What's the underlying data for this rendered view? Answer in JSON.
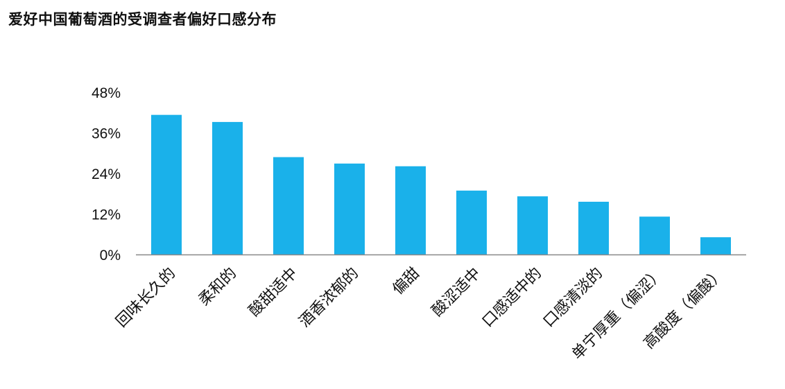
{
  "chart_data": {
    "type": "bar",
    "title": "爱好中国葡萄酒的受调查者偏好口感分布",
    "xlabel": "",
    "ylabel": "",
    "categories": [
      "回味长久的",
      "柔和的",
      "酸甜适中",
      "酒香浓郁的",
      "偏甜",
      "酸涩适中",
      "口感适中的",
      "口感清淡的",
      "单宁厚重（偏涩）",
      "高酸度（偏酸）"
    ],
    "values": [
      41.3,
      39.2,
      28.8,
      26.9,
      26.1,
      18.9,
      17.2,
      15.6,
      11.2,
      5.1
    ],
    "ylim": [
      0,
      48
    ],
    "yticks": [
      0,
      12,
      24,
      36,
      48
    ],
    "ytick_labels": [
      "0%",
      "12%",
      "24%",
      "36%",
      "48%"
    ],
    "grid": false,
    "legend": "none",
    "colors": {
      "bar": "#1ab1ea",
      "axis": "#888888"
    }
  }
}
